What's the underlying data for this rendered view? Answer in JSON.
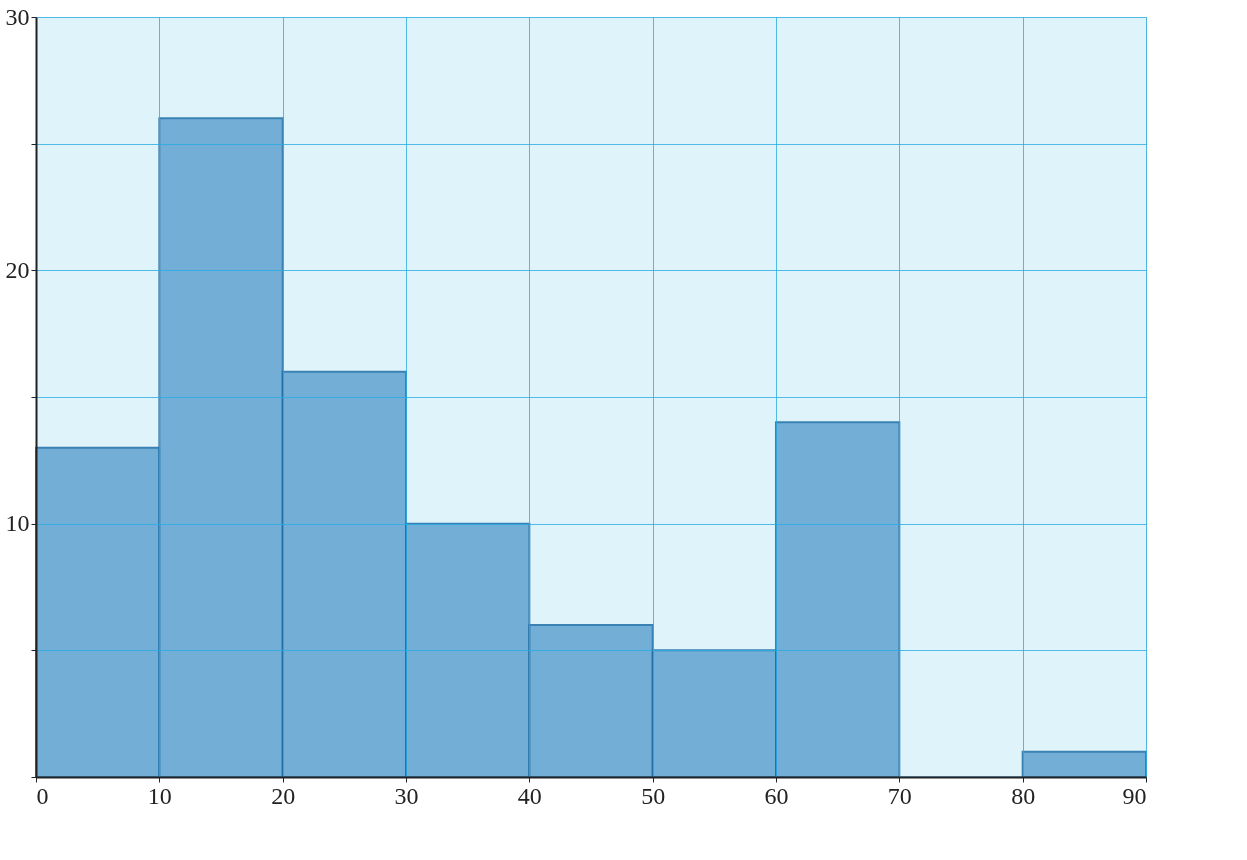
{
  "chart_data": {
    "type": "histogram",
    "bins": [
      0,
      10,
      20,
      30,
      40,
      50,
      60,
      70,
      80,
      90
    ],
    "values": [
      13,
      26,
      16,
      10,
      6,
      5,
      14,
      0,
      1
    ],
    "color": "#5fa3d0",
    "xlim": [
      0,
      90
    ],
    "xticks": [
      0,
      10,
      20,
      30,
      40,
      50,
      60,
      70,
      80,
      90
    ],
    "ylim": [
      0,
      30
    ],
    "yticks": [
      {
        "value": 0,
        "label": null
      },
      {
        "value": 5,
        "label": null
      },
      10,
      {
        "value": 15,
        "label": null
      },
      20,
      {
        "value": 25,
        "label": null
      },
      30
    ],
    "grid": true
  }
}
